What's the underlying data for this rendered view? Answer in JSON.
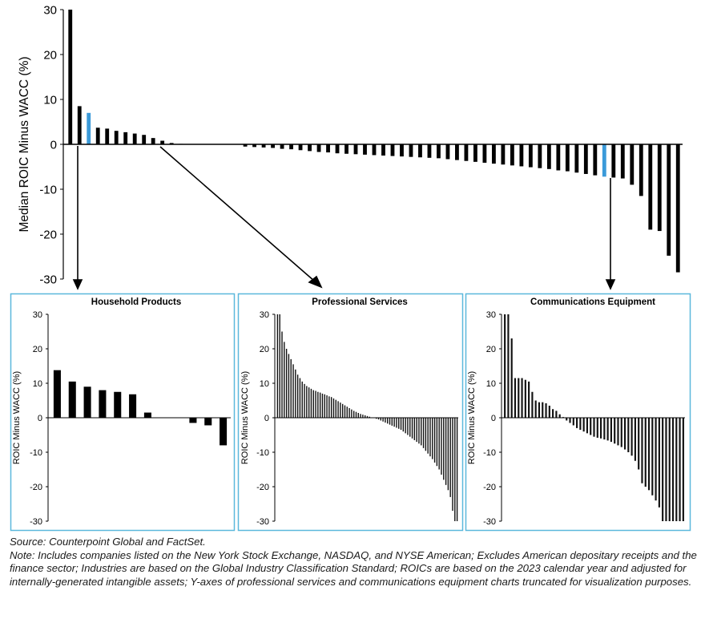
{
  "chart_data": [
    {
      "id": "main",
      "type": "bar",
      "title": "",
      "ylabel": "Median ROIC Minus WACC (%)",
      "ylim": [
        -30,
        30
      ],
      "yticks": [
        30,
        20,
        10,
        0,
        -10,
        -20,
        -30
      ],
      "highlight_color": "#3b9ad9",
      "bar_color": "#000000",
      "highlights": [
        2,
        58
      ],
      "values": [
        30,
        8.5,
        7,
        3.7,
        3.5,
        3.0,
        2.7,
        2.4,
        2.1,
        1.4,
        0.8,
        0.3,
        0.1,
        0.0,
        0.0,
        0.0,
        0.0,
        0.0,
        0.0,
        -0.5,
        -0.6,
        -0.7,
        -0.8,
        -1.0,
        -1.1,
        -1.3,
        -1.5,
        -1.7,
        -1.8,
        -2.0,
        -2.1,
        -2.2,
        -2.3,
        -2.4,
        -2.5,
        -2.6,
        -2.7,
        -2.8,
        -2.9,
        -3.0,
        -3.1,
        -3.3,
        -3.5,
        -3.7,
        -3.9,
        -4.1,
        -4.3,
        -4.5,
        -4.7,
        -4.9,
        -5.1,
        -5.3,
        -5.5,
        -5.8,
        -6.0,
        -6.3,
        -6.6,
        -6.9,
        -7.2,
        -7.4,
        -7.6,
        -9.0,
        -11.5,
        -19.0,
        -19.3,
        -24.8,
        -28.5
      ]
    },
    {
      "id": "household",
      "type": "bar",
      "title": "Household Products",
      "ylabel": "ROIC Minus WACC (%)",
      "ylim": [
        -30,
        30
      ],
      "yticks": [
        30,
        20,
        10,
        0,
        -10,
        -20,
        -30
      ],
      "values": [
        13.8,
        10.5,
        9.0,
        8.0,
        7.5,
        6.8,
        1.5,
        0.0,
        0.0,
        -1.5,
        -2.2,
        -8.0
      ]
    },
    {
      "id": "professional",
      "type": "bar",
      "title": "Professional Services",
      "ylabel": "ROIC Minus WACC (%)",
      "ylim": [
        -30,
        30
      ],
      "yticks": [
        30,
        20,
        10,
        0,
        -10,
        -20,
        -30
      ],
      "values": [
        30,
        30,
        25,
        22,
        20,
        18.5,
        17,
        15.5,
        14,
        12.5,
        11.5,
        10.5,
        9.8,
        9.2,
        8.8,
        8.4,
        8.0,
        7.8,
        7.5,
        7.3,
        7.0,
        6.8,
        6.5,
        6.2,
        6.0,
        5.6,
        5.2,
        4.8,
        4.4,
        4.0,
        3.6,
        3.2,
        2.8,
        2.4,
        2.0,
        1.7,
        1.4,
        1.1,
        0.9,
        0.7,
        0.5,
        0.3,
        0.1,
        -0.1,
        -0.3,
        -0.5,
        -0.8,
        -1.1,
        -1.4,
        -1.7,
        -2.0,
        -2.3,
        -2.6,
        -2.9,
        -3.2,
        -3.5,
        -4.0,
        -4.5,
        -5.0,
        -5.5,
        -6.0,
        -6.5,
        -7.0,
        -7.5,
        -8.0,
        -8.8,
        -9.6,
        -10.4,
        -11.2,
        -12.0,
        -13.0,
        -14.0,
        -15.0,
        -16.5,
        -18.0,
        -19.5,
        -21.0,
        -23.0,
        -27.0,
        -30,
        -30
      ]
    },
    {
      "id": "communications",
      "type": "bar",
      "title": "Communications Equipment",
      "ylabel": "ROIC Minus WACC (%)",
      "ylim": [
        -30,
        30
      ],
      "yticks": [
        30,
        20,
        10,
        0,
        -10,
        -20,
        -30
      ],
      "values": [
        30,
        30,
        23,
        11.5,
        11.5,
        11.5,
        11.0,
        10.5,
        7.5,
        5.0,
        4.5,
        4.5,
        4.2,
        3.5,
        2.5,
        2.0,
        1.0,
        0.2,
        -0.8,
        -1.5,
        -2.2,
        -3.0,
        -3.5,
        -4.0,
        -4.5,
        -5.0,
        -5.5,
        -5.8,
        -6.0,
        -6.3,
        -6.6,
        -7.0,
        -7.5,
        -8.0,
        -8.5,
        -9.2,
        -10.0,
        -11.0,
        -12.5,
        -15.0,
        -19.0,
        -20.0,
        -21.0,
        -22.5,
        -24.0,
        -26.0,
        -30,
        -30,
        -30,
        -30,
        -30,
        -30,
        -30
      ]
    }
  ],
  "notes": {
    "source": "Source: Counterpoint Global and FactSet.",
    "note": "Note: Includes companies listed on the New York Stock Exchange, NASDAQ, and NYSE American; Excludes American depositary receipts and the finance sector; Industries are based on the Global Industry Classification Standard; ROICs are based on the 2023 calendar year and adjusted for internally-generated intangible assets; Y-axes of professional services and communications equipment charts truncated for visualization purposes."
  },
  "colors": {
    "panel_border": "#5bb8dc",
    "highlight": "#3b9ad9"
  }
}
